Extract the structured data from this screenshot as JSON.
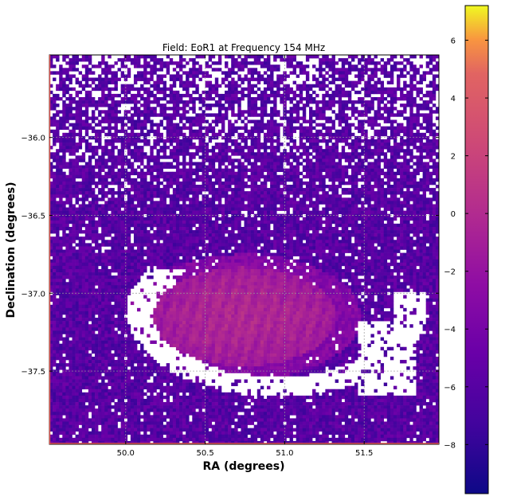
{
  "chart_data": {
    "type": "heatmap",
    "title": "Field: EoR1 at Frequency 154 MHz",
    "xlabel": "RA (degrees)",
    "ylabel": "Declination (degrees)",
    "xlim": [
      49.52,
      51.97
    ],
    "ylim": [
      -37.97,
      -35.47
    ],
    "x_ticks": [
      50.0,
      50.5,
      51.0,
      51.5
    ],
    "x_tick_labels": [
      "50.0",
      "50.5",
      "51.0",
      "51.5"
    ],
    "y_ticks": [
      -36.0,
      -36.5,
      -37.0,
      -37.5
    ],
    "y_tick_labels": [
      "−36.0",
      "−36.5",
      "−37.0",
      "−37.5"
    ],
    "grid": true,
    "colormap": "plasma",
    "colorbar_range": [
      -9.7,
      7.2
    ],
    "colorbar_ticks": [
      6,
      4,
      2,
      0,
      -2,
      -4,
      -6,
      -8
    ],
    "colorbar_tick_labels": [
      "6",
      "4",
      "2",
      "0",
      "−2",
      "−4",
      "−6",
      "−8"
    ],
    "features": {
      "bright_region": {
        "ra": 50.75,
        "dec": -37.15,
        "value": -1.5,
        "note": "central elliptical bright patch"
      },
      "background_value": -6,
      "blank_ring": {
        "ra": 50.95,
        "dec": -37.1,
        "note": "arc of masked (white) pixels around bright region"
      }
    }
  }
}
